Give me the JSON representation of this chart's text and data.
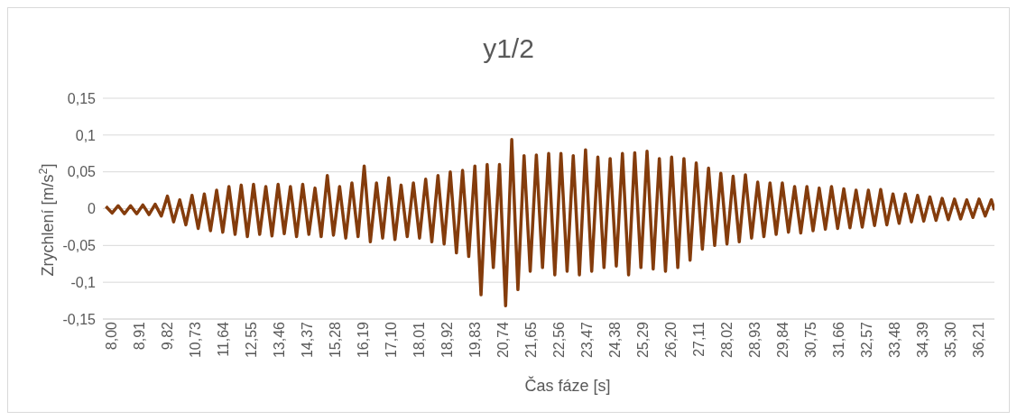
{
  "chart_data": {
    "type": "line",
    "title": "y1/2",
    "xlabel": "Čas fáze [s]",
    "ylabel": "Zrychlení [m/s$^{2}$]",
    "x": [
      8.0,
      8.2,
      8.4,
      8.6,
      8.8,
      9.0,
      9.2,
      9.4,
      9.6,
      9.8,
      10.0,
      10.2,
      10.4,
      10.6,
      10.8,
      11.0,
      11.2,
      11.4,
      11.6,
      11.8,
      12.0,
      12.2,
      12.4,
      12.6,
      12.8,
      13.0,
      13.2,
      13.4,
      13.6,
      13.8,
      14.0,
      14.2,
      14.4,
      14.6,
      14.8,
      15.0,
      15.2,
      15.4,
      15.6,
      15.8,
      16.0,
      16.2,
      16.4,
      16.6,
      16.8,
      17.0,
      17.2,
      17.4,
      17.6,
      17.8,
      18.0,
      18.2,
      18.4,
      18.6,
      18.8,
      19.0,
      19.2,
      19.4,
      19.6,
      19.8,
      20.0,
      20.2,
      20.4,
      20.6,
      20.8,
      21.0,
      21.2,
      21.4,
      21.6,
      21.8,
      22.0,
      22.2,
      22.4,
      22.6,
      22.8,
      23.0,
      23.2,
      23.4,
      23.6,
      23.8,
      24.0,
      24.2,
      24.4,
      24.6,
      24.8,
      25.0,
      25.2,
      25.4,
      25.6,
      25.8,
      26.0,
      26.2,
      26.4,
      26.6,
      26.8,
      27.0,
      27.2,
      27.4,
      27.6,
      27.8,
      28.0,
      28.2,
      28.4,
      28.6,
      28.8,
      29.0,
      29.2,
      29.4,
      29.6,
      29.8,
      30.0,
      30.2,
      30.4,
      30.6,
      30.8,
      31.0,
      31.2,
      31.4,
      31.6,
      31.8,
      32.0,
      32.2,
      32.4,
      32.6,
      32.8,
      33.0,
      33.2,
      33.4,
      33.6,
      33.8,
      34.0,
      34.2,
      34.4,
      34.6,
      34.8,
      35.0,
      35.2,
      35.4,
      35.6,
      35.8,
      36.0,
      36.2,
      36.4,
      36.6,
      36.8,
      36.9
    ],
    "series": [
      {
        "color": "#843c0c",
        "values": [
          0.003,
          -0.006,
          0.004,
          -0.007,
          0.004,
          -0.007,
          0.005,
          -0.008,
          0.006,
          -0.01,
          0.017,
          -0.018,
          0.012,
          -0.022,
          0.018,
          -0.027,
          0.02,
          -0.03,
          0.025,
          -0.032,
          0.03,
          -0.035,
          0.032,
          -0.038,
          0.033,
          -0.035,
          0.03,
          -0.037,
          0.033,
          -0.034,
          0.03,
          -0.038,
          0.033,
          -0.035,
          0.028,
          -0.038,
          0.045,
          -0.036,
          0.03,
          -0.04,
          0.035,
          -0.038,
          0.058,
          -0.045,
          0.035,
          -0.04,
          0.042,
          -0.042,
          0.032,
          -0.038,
          0.035,
          -0.04,
          0.04,
          -0.045,
          0.045,
          -0.048,
          0.05,
          -0.06,
          0.052,
          -0.065,
          0.058,
          -0.117,
          0.06,
          -0.08,
          0.06,
          -0.132,
          0.094,
          -0.11,
          0.072,
          -0.085,
          0.073,
          -0.08,
          0.075,
          -0.09,
          0.075,
          -0.085,
          0.072,
          -0.09,
          0.08,
          -0.085,
          0.07,
          -0.08,
          0.068,
          -0.078,
          0.075,
          -0.09,
          0.076,
          -0.08,
          0.078,
          -0.082,
          0.068,
          -0.085,
          0.07,
          -0.08,
          0.068,
          -0.07,
          0.062,
          -0.055,
          0.055,
          -0.05,
          0.048,
          -0.048,
          0.044,
          -0.045,
          0.046,
          -0.04,
          0.036,
          -0.038,
          0.035,
          -0.035,
          0.035,
          -0.032,
          0.03,
          -0.033,
          0.03,
          -0.03,
          0.028,
          -0.028,
          0.03,
          -0.027,
          0.027,
          -0.026,
          0.025,
          -0.025,
          0.025,
          -0.023,
          0.026,
          -0.022,
          0.02,
          -0.02,
          0.02,
          -0.018,
          0.018,
          -0.017,
          0.016,
          -0.016,
          0.014,
          -0.015,
          0.013,
          -0.014,
          0.012,
          -0.012,
          0.013,
          -0.01,
          0.012,
          -0.002
        ]
      }
    ],
    "xlim": [
      7.9,
      36.9
    ],
    "xticks": [
      {
        "value": 8.0,
        "label": "8,00"
      },
      {
        "value": 8.91,
        "label": "8,91"
      },
      {
        "value": 9.82,
        "label": "9,82"
      },
      {
        "value": 10.73,
        "label": "10,73"
      },
      {
        "value": 11.64,
        "label": "11,64"
      },
      {
        "value": 12.55,
        "label": "12,55"
      },
      {
        "value": 13.46,
        "label": "13,46"
      },
      {
        "value": 14.37,
        "label": "14,37"
      },
      {
        "value": 15.28,
        "label": "15,28"
      },
      {
        "value": 16.19,
        "label": "16,19"
      },
      {
        "value": 17.1,
        "label": "17,10"
      },
      {
        "value": 18.01,
        "label": "18,01"
      },
      {
        "value": 18.92,
        "label": "18,92"
      },
      {
        "value": 19.83,
        "label": "19,83"
      },
      {
        "value": 20.74,
        "label": "20,74"
      },
      {
        "value": 21.65,
        "label": "21,65"
      },
      {
        "value": 22.56,
        "label": "22,56"
      },
      {
        "value": 23.47,
        "label": "23,47"
      },
      {
        "value": 24.38,
        "label": "24,38"
      },
      {
        "value": 25.29,
        "label": "25,29"
      },
      {
        "value": 26.2,
        "label": "26,20"
      },
      {
        "value": 27.11,
        "label": "27,11"
      },
      {
        "value": 28.02,
        "label": "28,02"
      },
      {
        "value": 28.93,
        "label": "28,93"
      },
      {
        "value": 29.84,
        "label": "29,84"
      },
      {
        "value": 30.75,
        "label": "30,75"
      },
      {
        "value": 31.66,
        "label": "31,66"
      },
      {
        "value": 32.57,
        "label": "32,57"
      },
      {
        "value": 33.48,
        "label": "33,48"
      },
      {
        "value": 34.39,
        "label": "34,39"
      },
      {
        "value": 35.3,
        "label": "35,30"
      },
      {
        "value": 36.21,
        "label": "36,21"
      }
    ],
    "ylim": [
      -0.15,
      0.15
    ],
    "yticks": [
      {
        "value": -0.15,
        "label": "-0,15"
      },
      {
        "value": -0.1,
        "label": "-0,1"
      },
      {
        "value": -0.05,
        "label": "-0,05"
      },
      0,
      {
        "value": 0.05,
        "label": "0,05"
      },
      {
        "value": 0.1,
        "label": "0,1"
      },
      {
        "value": 0.15,
        "label": "0,15"
      }
    ],
    "grid": "y",
    "legend": false,
    "marker": "none",
    "line_style": "solid"
  }
}
